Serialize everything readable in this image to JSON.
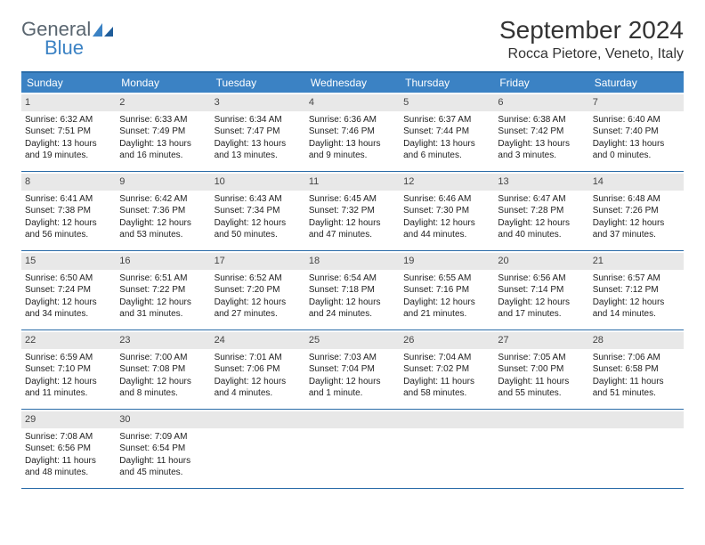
{
  "brand": {
    "textTop": "General",
    "textBottom": "Blue"
  },
  "title": {
    "month": "September 2024",
    "location": "Rocca Pietore, Veneto, Italy"
  },
  "colors": {
    "headerBar": "#3b82c4",
    "ruleLine": "#2a6ca8",
    "dayNumBg": "#e8e8e8"
  },
  "daysOfWeek": [
    "Sunday",
    "Monday",
    "Tuesday",
    "Wednesday",
    "Thursday",
    "Friday",
    "Saturday"
  ],
  "weeks": [
    [
      {
        "n": "1",
        "sunrise": "Sunrise: 6:32 AM",
        "sunset": "Sunset: 7:51 PM",
        "day1": "Daylight: 13 hours",
        "day2": "and 19 minutes."
      },
      {
        "n": "2",
        "sunrise": "Sunrise: 6:33 AM",
        "sunset": "Sunset: 7:49 PM",
        "day1": "Daylight: 13 hours",
        "day2": "and 16 minutes."
      },
      {
        "n": "3",
        "sunrise": "Sunrise: 6:34 AM",
        "sunset": "Sunset: 7:47 PM",
        "day1": "Daylight: 13 hours",
        "day2": "and 13 minutes."
      },
      {
        "n": "4",
        "sunrise": "Sunrise: 6:36 AM",
        "sunset": "Sunset: 7:46 PM",
        "day1": "Daylight: 13 hours",
        "day2": "and 9 minutes."
      },
      {
        "n": "5",
        "sunrise": "Sunrise: 6:37 AM",
        "sunset": "Sunset: 7:44 PM",
        "day1": "Daylight: 13 hours",
        "day2": "and 6 minutes."
      },
      {
        "n": "6",
        "sunrise": "Sunrise: 6:38 AM",
        "sunset": "Sunset: 7:42 PM",
        "day1": "Daylight: 13 hours",
        "day2": "and 3 minutes."
      },
      {
        "n": "7",
        "sunrise": "Sunrise: 6:40 AM",
        "sunset": "Sunset: 7:40 PM",
        "day1": "Daylight: 13 hours",
        "day2": "and 0 minutes."
      }
    ],
    [
      {
        "n": "8",
        "sunrise": "Sunrise: 6:41 AM",
        "sunset": "Sunset: 7:38 PM",
        "day1": "Daylight: 12 hours",
        "day2": "and 56 minutes."
      },
      {
        "n": "9",
        "sunrise": "Sunrise: 6:42 AM",
        "sunset": "Sunset: 7:36 PM",
        "day1": "Daylight: 12 hours",
        "day2": "and 53 minutes."
      },
      {
        "n": "10",
        "sunrise": "Sunrise: 6:43 AM",
        "sunset": "Sunset: 7:34 PM",
        "day1": "Daylight: 12 hours",
        "day2": "and 50 minutes."
      },
      {
        "n": "11",
        "sunrise": "Sunrise: 6:45 AM",
        "sunset": "Sunset: 7:32 PM",
        "day1": "Daylight: 12 hours",
        "day2": "and 47 minutes."
      },
      {
        "n": "12",
        "sunrise": "Sunrise: 6:46 AM",
        "sunset": "Sunset: 7:30 PM",
        "day1": "Daylight: 12 hours",
        "day2": "and 44 minutes."
      },
      {
        "n": "13",
        "sunrise": "Sunrise: 6:47 AM",
        "sunset": "Sunset: 7:28 PM",
        "day1": "Daylight: 12 hours",
        "day2": "and 40 minutes."
      },
      {
        "n": "14",
        "sunrise": "Sunrise: 6:48 AM",
        "sunset": "Sunset: 7:26 PM",
        "day1": "Daylight: 12 hours",
        "day2": "and 37 minutes."
      }
    ],
    [
      {
        "n": "15",
        "sunrise": "Sunrise: 6:50 AM",
        "sunset": "Sunset: 7:24 PM",
        "day1": "Daylight: 12 hours",
        "day2": "and 34 minutes."
      },
      {
        "n": "16",
        "sunrise": "Sunrise: 6:51 AM",
        "sunset": "Sunset: 7:22 PM",
        "day1": "Daylight: 12 hours",
        "day2": "and 31 minutes."
      },
      {
        "n": "17",
        "sunrise": "Sunrise: 6:52 AM",
        "sunset": "Sunset: 7:20 PM",
        "day1": "Daylight: 12 hours",
        "day2": "and 27 minutes."
      },
      {
        "n": "18",
        "sunrise": "Sunrise: 6:54 AM",
        "sunset": "Sunset: 7:18 PM",
        "day1": "Daylight: 12 hours",
        "day2": "and 24 minutes."
      },
      {
        "n": "19",
        "sunrise": "Sunrise: 6:55 AM",
        "sunset": "Sunset: 7:16 PM",
        "day1": "Daylight: 12 hours",
        "day2": "and 21 minutes."
      },
      {
        "n": "20",
        "sunrise": "Sunrise: 6:56 AM",
        "sunset": "Sunset: 7:14 PM",
        "day1": "Daylight: 12 hours",
        "day2": "and 17 minutes."
      },
      {
        "n": "21",
        "sunrise": "Sunrise: 6:57 AM",
        "sunset": "Sunset: 7:12 PM",
        "day1": "Daylight: 12 hours",
        "day2": "and 14 minutes."
      }
    ],
    [
      {
        "n": "22",
        "sunrise": "Sunrise: 6:59 AM",
        "sunset": "Sunset: 7:10 PM",
        "day1": "Daylight: 12 hours",
        "day2": "and 11 minutes."
      },
      {
        "n": "23",
        "sunrise": "Sunrise: 7:00 AM",
        "sunset": "Sunset: 7:08 PM",
        "day1": "Daylight: 12 hours",
        "day2": "and 8 minutes."
      },
      {
        "n": "24",
        "sunrise": "Sunrise: 7:01 AM",
        "sunset": "Sunset: 7:06 PM",
        "day1": "Daylight: 12 hours",
        "day2": "and 4 minutes."
      },
      {
        "n": "25",
        "sunrise": "Sunrise: 7:03 AM",
        "sunset": "Sunset: 7:04 PM",
        "day1": "Daylight: 12 hours",
        "day2": "and 1 minute."
      },
      {
        "n": "26",
        "sunrise": "Sunrise: 7:04 AM",
        "sunset": "Sunset: 7:02 PM",
        "day1": "Daylight: 11 hours",
        "day2": "and 58 minutes."
      },
      {
        "n": "27",
        "sunrise": "Sunrise: 7:05 AM",
        "sunset": "Sunset: 7:00 PM",
        "day1": "Daylight: 11 hours",
        "day2": "and 55 minutes."
      },
      {
        "n": "28",
        "sunrise": "Sunrise: 7:06 AM",
        "sunset": "Sunset: 6:58 PM",
        "day1": "Daylight: 11 hours",
        "day2": "and 51 minutes."
      }
    ],
    [
      {
        "n": "29",
        "sunrise": "Sunrise: 7:08 AM",
        "sunset": "Sunset: 6:56 PM",
        "day1": "Daylight: 11 hours",
        "day2": "and 48 minutes."
      },
      {
        "n": "30",
        "sunrise": "Sunrise: 7:09 AM",
        "sunset": "Sunset: 6:54 PM",
        "day1": "Daylight: 11 hours",
        "day2": "and 45 minutes."
      },
      {
        "empty": true
      },
      {
        "empty": true
      },
      {
        "empty": true
      },
      {
        "empty": true
      },
      {
        "empty": true
      }
    ]
  ]
}
